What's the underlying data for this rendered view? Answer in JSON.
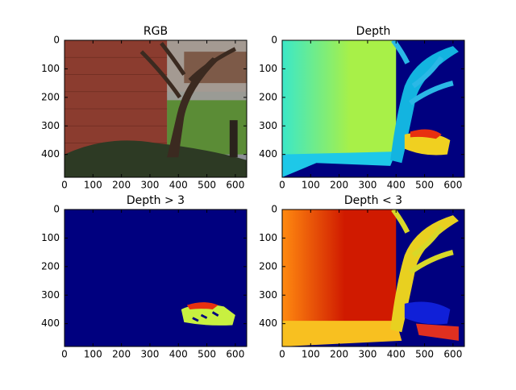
{
  "chart_data": [
    {
      "type": "image",
      "title": "RGB",
      "xlim": [
        0,
        640
      ],
      "ylim": [
        480,
        0
      ],
      "xticks": [
        0,
        100,
        200,
        300,
        400,
        500,
        600
      ],
      "yticks": [
        0,
        100,
        200,
        300,
        400
      ]
    },
    {
      "type": "image",
      "title": "Depth",
      "xlim": [
        0,
        640
      ],
      "ylim": [
        480,
        0
      ],
      "xticks": [
        0,
        100,
        200,
        300,
        400,
        500,
        600
      ],
      "yticks": [
        0,
        100,
        200,
        300,
        400
      ]
    },
    {
      "type": "image",
      "title": "Depth > 3",
      "xlim": [
        0,
        640
      ],
      "ylim": [
        480,
        0
      ],
      "xticks": [
        0,
        100,
        200,
        300,
        400,
        500,
        600
      ],
      "yticks": [
        0,
        100,
        200,
        300,
        400
      ]
    },
    {
      "type": "image",
      "title": "Depth < 3",
      "xlim": [
        0,
        640
      ],
      "ylim": [
        480,
        0
      ],
      "xticks": [
        0,
        100,
        200,
        300,
        400,
        500,
        600
      ],
      "yticks": [
        0,
        100,
        200,
        300,
        400
      ]
    }
  ]
}
